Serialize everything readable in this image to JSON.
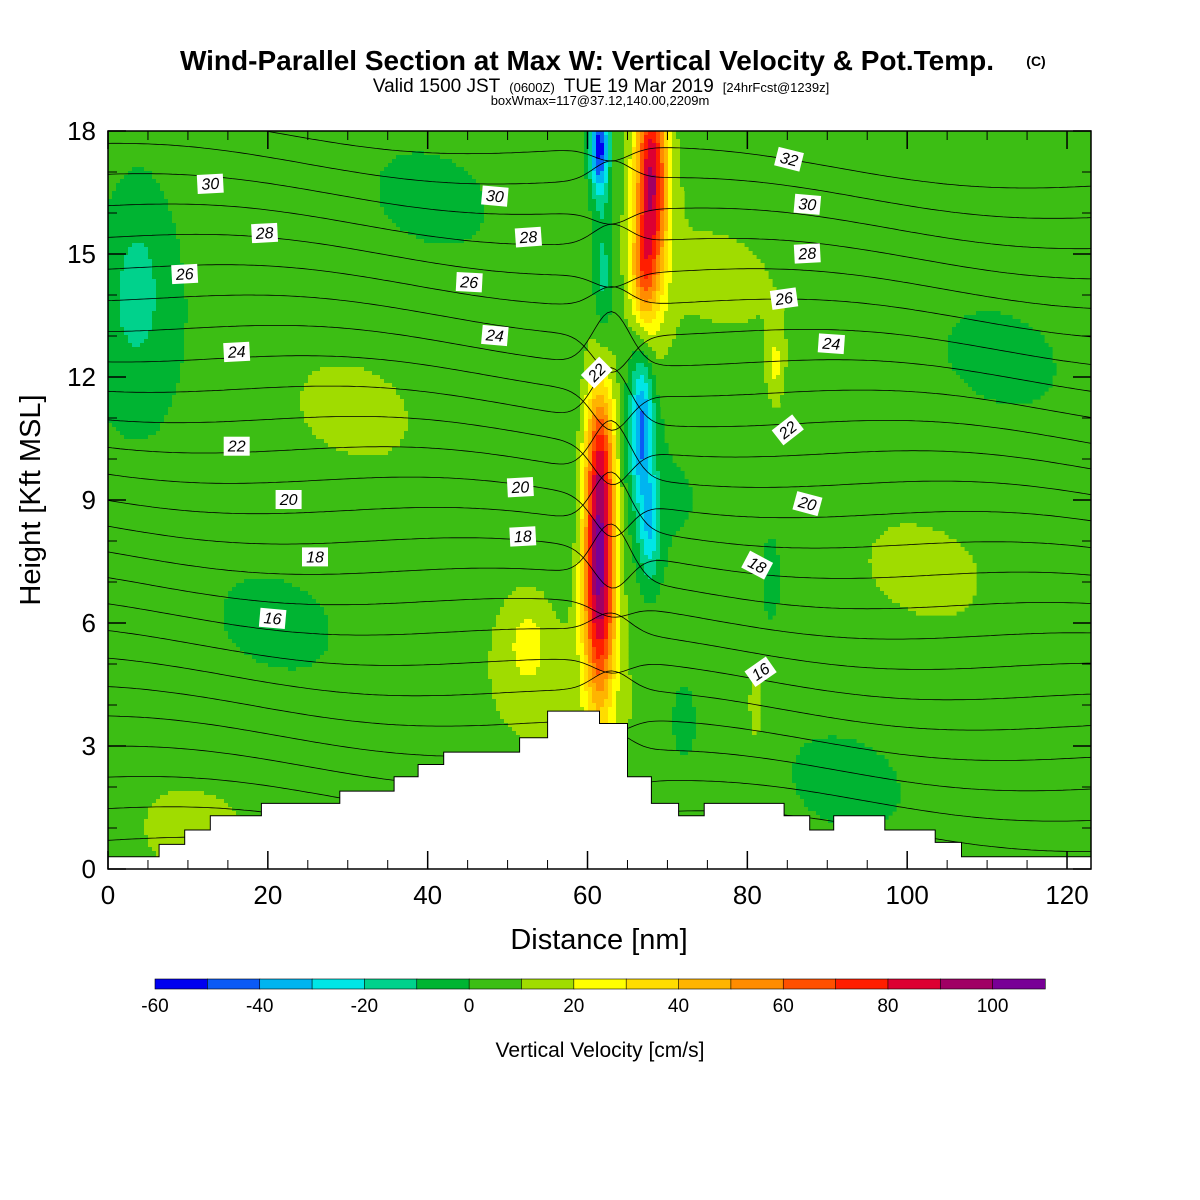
{
  "title": {
    "main": "Wind-Parallel Section at Max W: Vertical Velocity & Pot.Temp.",
    "copyright": "(C)",
    "sub_valid": "Valid 1500 JST",
    "sub_z": "(0600Z)",
    "sub_date": "TUE 19 Mar 2019",
    "sub_fcst": "[24hrFcst@1239z]",
    "sub3": "boxWmax=117@37.12,140.00,2209m"
  },
  "chart_data": {
    "type": "heatmap",
    "xlabel": "Distance [nm]",
    "ylabel": "Height [Kft MSL]",
    "xlim": [
      0,
      123
    ],
    "ylim": [
      0,
      18
    ],
    "x_ticks": [
      0,
      20,
      40,
      60,
      80,
      100,
      120
    ],
    "y_ticks": [
      0,
      3,
      6,
      9,
      12,
      15,
      18
    ],
    "colorbar": {
      "title": "Vertical Velocity [cm/s]",
      "levels": [
        -60,
        -50,
        -40,
        -30,
        -20,
        -10,
        0,
        10,
        20,
        30,
        40,
        50,
        60,
        70,
        80,
        90,
        100,
        110
      ],
      "tick_values": [
        -60,
        -40,
        -20,
        0,
        20,
        40,
        60,
        80,
        100
      ],
      "tick_labels": [
        "-60",
        "-40",
        "-20",
        "0",
        "20",
        "40",
        "60",
        "80",
        "100"
      ],
      "colors": [
        "#0000f0",
        "#0a5af5",
        "#00b4f0",
        "#00e6e6",
        "#00d28c",
        "#00b432",
        "#3cbe14",
        "#a0dc00",
        "#ffff00",
        "#ffdc00",
        "#ffb400",
        "#ff8c00",
        "#ff5000",
        "#ff1e00",
        "#dc0032",
        "#a00064",
        "#780096"
      ]
    },
    "terrain_kft": [
      [
        0,
        0.3
      ],
      [
        6.4,
        0.3
      ],
      [
        6.4,
        0.6
      ],
      [
        9.6,
        0.6
      ],
      [
        9.6,
        0.95
      ],
      [
        12.8,
        0.95
      ],
      [
        12.8,
        1.3
      ],
      [
        19.2,
        1.3
      ],
      [
        19.2,
        1.6
      ],
      [
        29,
        1.6
      ],
      [
        29,
        1.9
      ],
      [
        35.8,
        1.9
      ],
      [
        35.8,
        2.25
      ],
      [
        38.8,
        2.25
      ],
      [
        38.8,
        2.55
      ],
      [
        42,
        2.55
      ],
      [
        42,
        2.85
      ],
      [
        51.5,
        2.85
      ],
      [
        51.5,
        3.2
      ],
      [
        55,
        3.2
      ],
      [
        55,
        3.85
      ],
      [
        61.5,
        3.85
      ],
      [
        61.5,
        3.55
      ],
      [
        65,
        3.55
      ],
      [
        65,
        2.25
      ],
      [
        68,
        2.25
      ],
      [
        68,
        1.6
      ],
      [
        71.4,
        1.6
      ],
      [
        71.4,
        1.3
      ],
      [
        74.6,
        1.3
      ],
      [
        74.6,
        1.6
      ],
      [
        84.6,
        1.6
      ],
      [
        84.6,
        1.3
      ],
      [
        87.8,
        1.3
      ],
      [
        87.8,
        0.95
      ],
      [
        90.8,
        0.95
      ],
      [
        90.8,
        1.3
      ],
      [
        97.2,
        1.3
      ],
      [
        97.2,
        0.95
      ],
      [
        103.5,
        0.95
      ],
      [
        103.5,
        0.65
      ],
      [
        106.8,
        0.65
      ],
      [
        106.8,
        0.3
      ],
      [
        123,
        0.3
      ]
    ],
    "w_features": [
      {
        "x": 61.5,
        "y": 7.4,
        "rx": 2.0,
        "ry": 3.2,
        "peak": 100
      },
      {
        "x": 61.6,
        "y": 10.3,
        "rx": 1.8,
        "ry": 1.8,
        "peak": 35
      },
      {
        "x": 68.0,
        "y": 16.8,
        "rx": 2.0,
        "ry": 2.8,
        "peak": 85
      },
      {
        "x": 66.8,
        "y": 14.5,
        "rx": 1.4,
        "ry": 1.2,
        "peak": 30
      },
      {
        "x": 66.8,
        "y": 10.8,
        "rx": 1.5,
        "ry": 1.8,
        "peak": -45
      },
      {
        "x": 67.8,
        "y": 8.3,
        "rx": 1.3,
        "ry": 1.3,
        "peak": -28
      },
      {
        "x": 61.5,
        "y": 17.6,
        "rx": 1.2,
        "ry": 1.2,
        "peak": -60
      },
      {
        "x": 62.0,
        "y": 14.5,
        "rx": 1.3,
        "ry": 1.6,
        "peak": -20
      },
      {
        "x": 4.0,
        "y": 14.8,
        "rx": 5.0,
        "ry": 3.5,
        "peak": -15
      },
      {
        "x": 52.5,
        "y": 5.5,
        "rx": 3.0,
        "ry": 1.2,
        "peak": 15
      },
      {
        "x": 83.5,
        "y": 12.3,
        "rx": 1.0,
        "ry": 0.9,
        "peak": 15
      },
      {
        "x": 81.0,
        "y": 4.0,
        "rx": 0.8,
        "ry": 0.9,
        "peak": 15
      },
      {
        "x": 72.0,
        "y": 3.6,
        "rx": 1.5,
        "ry": 0.9,
        "peak": -15
      },
      {
        "x": 83.0,
        "y": 7.1,
        "rx": 1.0,
        "ry": 0.9,
        "peak": -15
      }
    ],
    "contour_labels": [
      {
        "text": "30",
        "x": 12.8,
        "y": 16.7,
        "angle": -3
      },
      {
        "text": "28",
        "x": 19.6,
        "y": 15.5,
        "angle": -3
      },
      {
        "text": "26",
        "x": 9.6,
        "y": 14.5,
        "angle": -3
      },
      {
        "text": "24",
        "x": 16.1,
        "y": 12.6,
        "angle": -3
      },
      {
        "text": "22",
        "x": 16.1,
        "y": 10.3,
        "angle": 0
      },
      {
        "text": "20",
        "x": 22.6,
        "y": 9.0,
        "angle": 0
      },
      {
        "text": "18",
        "x": 25.9,
        "y": 7.6,
        "angle": 0
      },
      {
        "text": "16",
        "x": 20.6,
        "y": 6.1,
        "angle": 5
      },
      {
        "text": "30",
        "x": 48.4,
        "y": 16.4,
        "angle": 5
      },
      {
        "text": "28",
        "x": 52.6,
        "y": 15.4,
        "angle": -4
      },
      {
        "text": "26",
        "x": 45.2,
        "y": 14.3,
        "angle": 3
      },
      {
        "text": "24",
        "x": 48.4,
        "y": 13.0,
        "angle": 5
      },
      {
        "text": "22",
        "x": 61.2,
        "y": 12.1,
        "angle": -45
      },
      {
        "text": "20",
        "x": 51.6,
        "y": 9.3,
        "angle": -3
      },
      {
        "text": "18",
        "x": 51.9,
        "y": 8.1,
        "angle": -3
      },
      {
        "text": "32",
        "x": 85.2,
        "y": 17.3,
        "angle": 14
      },
      {
        "text": "30",
        "x": 87.5,
        "y": 16.2,
        "angle": 5
      },
      {
        "text": "28",
        "x": 87.5,
        "y": 15.0,
        "angle": -3
      },
      {
        "text": "26",
        "x": 84.6,
        "y": 13.9,
        "angle": -8
      },
      {
        "text": "24",
        "x": 90.5,
        "y": 12.8,
        "angle": 4
      },
      {
        "text": "22",
        "x": 85.1,
        "y": 10.7,
        "angle": -38
      },
      {
        "text": "20",
        "x": 87.5,
        "y": 8.9,
        "angle": 15
      },
      {
        "text": "18",
        "x": 81.2,
        "y": 7.4,
        "angle": 28
      },
      {
        "text": "16",
        "x": 81.7,
        "y": 4.8,
        "angle": -35
      }
    ]
  }
}
